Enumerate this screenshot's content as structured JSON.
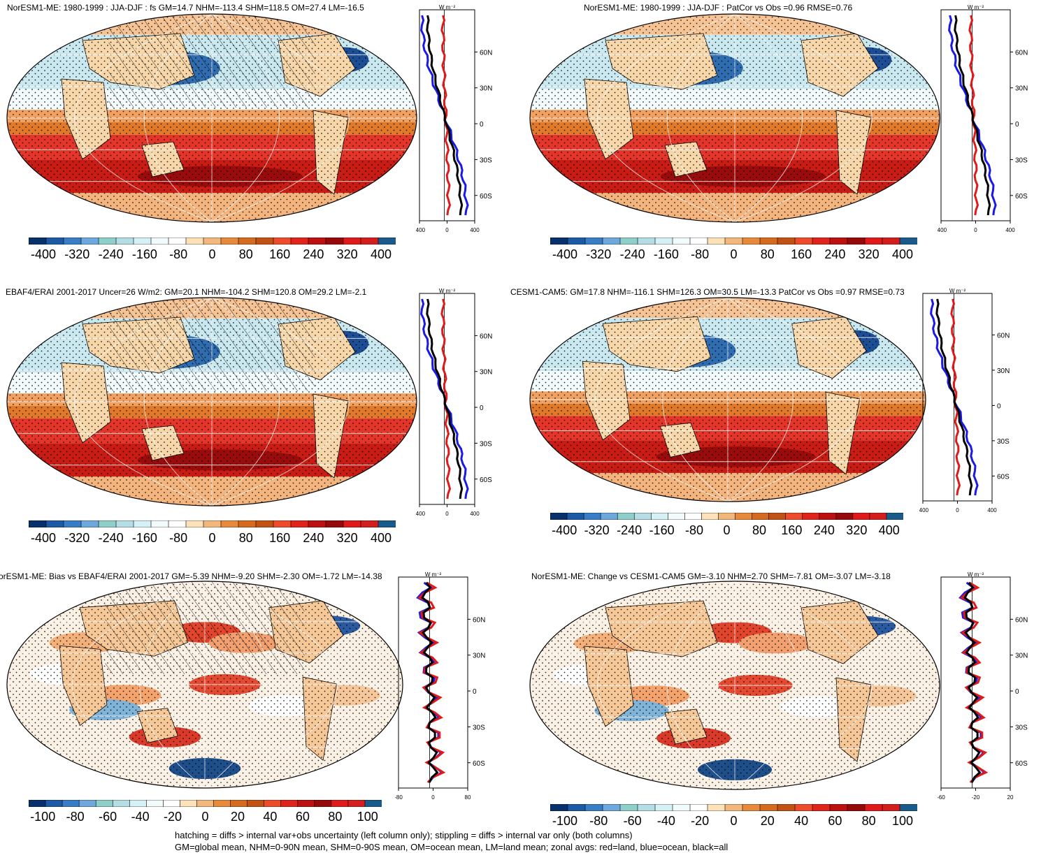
{
  "palette": [
    "#08306b",
    "#1c5aa6",
    "#3a7dc7",
    "#6fa8dc",
    "#8ecfc9",
    "#b4dde6",
    "#d5f1f5",
    "#f2fbfc",
    "#ffffff",
    "#fde1b8",
    "#f2b77c",
    "#e88a3c",
    "#d46b1e",
    "#c25213",
    "#ee4a2c",
    "#e0231b",
    "#bd1010",
    "#96090a",
    "#e01a1a",
    "#d41e1e",
    "#1a5b8c"
  ],
  "panels": [
    {
      "id": "p1",
      "title": "NorESM1-ME: 1980-1999 : JJA-DJF : fs GM=14.7 NHM=-113.4 SHM=118.5 OM=27.4 LM=-16.5",
      "cbar_labels": [
        "-400",
        "-320",
        "-240",
        "-160",
        "-80",
        "0",
        "80",
        "160",
        "240",
        "320",
        "400"
      ],
      "zonal_unit": "W m⁻²",
      "zonal_xticks": [
        "-400",
        "0",
        "400"
      ],
      "lat_labels": [
        "60N",
        "30N",
        "0",
        "30S",
        "60S"
      ],
      "hatched": true
    },
    {
      "id": "p2",
      "title": "NorESM1-ME: 1980-1999 : JJA-DJF : PatCor vs Obs =0.96 RMSE=0.76",
      "cbar_labels": [
        "-400",
        "-320",
        "-240",
        "-160",
        "-80",
        "0",
        "80",
        "160",
        "240",
        "320",
        "400"
      ],
      "zonal_unit": "W m⁻²",
      "zonal_xticks": [
        "-400",
        "0",
        "400"
      ],
      "lat_labels": [
        "60N",
        "30N",
        "0",
        "30S",
        "60S"
      ],
      "hatched": false
    },
    {
      "id": "p3",
      "title": "EBAF4/ERAI 2001-2017 Uncer=26 W/m2: GM=20.1 NHM=-104.2 SHM=120.8 OM=29.2 LM=-2.1",
      "cbar_labels": [
        "-400",
        "-320",
        "-240",
        "-160",
        "-80",
        "0",
        "80",
        "160",
        "240",
        "320",
        "400"
      ],
      "zonal_unit": "W m⁻²",
      "zonal_xticks": [
        "-400",
        "0",
        "400"
      ],
      "lat_labels": [
        "60N",
        "30N",
        "0",
        "30S",
        "60S"
      ],
      "hatched": true
    },
    {
      "id": "p4",
      "title": "CESM1-CAM5: GM=17.8 NHM=-116.1 SHM=126.3 OM=30.5 LM=-13.3 PatCor vs Obs =0.97 RMSE=0.73",
      "cbar_labels": [
        "-400",
        "-320",
        "-240",
        "-160",
        "-80",
        "0",
        "80",
        "160",
        "240",
        "320",
        "400"
      ],
      "zonal_unit": "W m⁻²",
      "zonal_xticks": [
        "-400",
        "0",
        "400"
      ],
      "lat_labels": [
        "60N",
        "30N",
        "0",
        "30S",
        "60S"
      ],
      "hatched": false
    },
    {
      "id": "p5",
      "title": "orESM1-ME: Bias vs EBAF4/ERAI 2001-2017 GM=-5.39 NHM=-9.20 SHM=-2.30 OM=-1.72 LM=-14.38",
      "cbar_labels": [
        "-100",
        "-80",
        "-60",
        "-40",
        "-20",
        "0",
        "20",
        "40",
        "60",
        "80",
        "100"
      ],
      "zonal_unit": "W m⁻²",
      "zonal_xticks": [
        "-80",
        "0",
        "80"
      ],
      "lat_labels": [
        "60N",
        "30N",
        "0",
        "30S",
        "60S"
      ],
      "hatched": true
    },
    {
      "id": "p6",
      "title": "NorESM1-ME: Change vs CESM1-CAM5 GM=-3.10 NHM=2.70 SHM=-7.81 OM=-3.07 LM=-3.18",
      "cbar_labels": [
        "-100",
        "-80",
        "-60",
        "-40",
        "-20",
        "0",
        "20",
        "40",
        "60",
        "80",
        "100"
      ],
      "zonal_unit": "W m⁻²",
      "zonal_xticks": [
        "-60",
        "-20",
        "20"
      ],
      "lat_labels": [
        "60N",
        "30N",
        "0",
        "30S",
        "60S"
      ],
      "hatched": false
    }
  ],
  "footer": {
    "line1": "hatching = diffs > internal var+obs uncertainty (left column only); stippling = diffs > internal var only (both columns)",
    "line2": "GM=global mean, NHM=0-90N mean, SHM=0-90S mean, OM=ocean mean, LM=land mean; zonal avgs: red=land, blue=ocean, black=all"
  }
}
